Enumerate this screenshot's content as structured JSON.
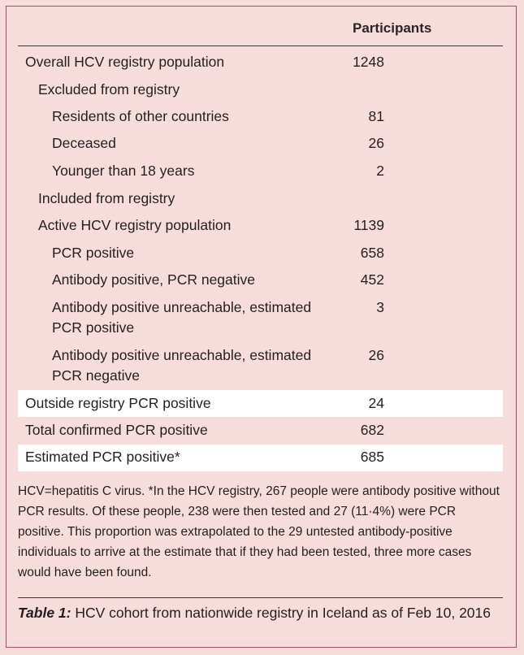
{
  "table": {
    "column_header": "Participants",
    "rows": [
      {
        "label": "Overall HCV registry population",
        "value": "1248"
      },
      {
        "label": "Excluded from registry",
        "value": ""
      },
      {
        "label": "Residents of other countries",
        "value": "81"
      },
      {
        "label": "Deceased",
        "value": "26"
      },
      {
        "label": "Younger than 18 years",
        "value": "2"
      },
      {
        "label": "Included from registry",
        "value": ""
      },
      {
        "label": "Active HCV registry population",
        "value": "1139"
      },
      {
        "label": "PCR positive",
        "value": "658"
      },
      {
        "label": "Antibody positive, PCR negative",
        "value": "452"
      },
      {
        "label": "Antibody positive unreachable, estimated PCR positive",
        "value": "3"
      },
      {
        "label": "Antibody positive unreachable, estimated PCR negative",
        "value": "26"
      },
      {
        "label": "Outside registry PCR positive",
        "value": "24"
      },
      {
        "label": "Total confirmed PCR positive",
        "value": "682"
      },
      {
        "label": "Estimated PCR positive*",
        "value": "685"
      }
    ]
  },
  "footnote": "HCV=hepatitis C virus. *In the HCV registry, 267 people were antibody positive without PCR results. Of these people, 238 were then tested and 27 (11·4%) were PCR positive. This proportion was extrapolated to the 29 untested antibody-positive individuals to arrive at the estimate that if they had been tested, three more cases would have been found.",
  "caption": {
    "label": "Table 1:",
    "text": " HCV cohort from nationwide registry in Iceland as of Feb 10, 2016"
  },
  "colors": {
    "background": "#f6dcda",
    "border": "#b0446a",
    "highlight_row": "#ffffff"
  }
}
